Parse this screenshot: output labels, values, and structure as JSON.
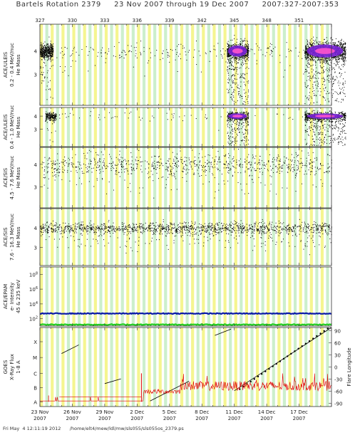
{
  "header": {
    "title": "Bartels Rotation 2379     23 Nov 2007 through 19 Dec 2007     2007:327-2007:353"
  },
  "footer": {
    "text": "Fri May  4 12:11:19 2012      /home/elt4/mew/ldl/mw/sls055/sls055os_2379.ps"
  },
  "chart_data": [
    {
      "type": "scatter",
      "ylabel": [
        "ACE/ULEIS",
        "0.2 - 0.4 MeV/nuc",
        "He Mass"
      ],
      "y_ticks": [
        "4",
        "3"
      ],
      "note": "point density shown as color contours (purple/pink cores at high density)",
      "clusters_day": [
        327.0,
        345.0,
        352.0
      ]
    },
    {
      "type": "scatter",
      "ylabel": [
        "ACE/ULEIS",
        "0.4 - 1.0 MeV/nuc",
        "He Mass"
      ],
      "y_ticks": [
        "4",
        "3"
      ],
      "clusters_day": [
        327.0,
        345.0,
        352.0
      ]
    },
    {
      "type": "scatter",
      "ylabel": [
        "ACE/SIS",
        "4.5 - 7.6 MeV/nuc",
        "He Mass"
      ],
      "y_ticks": [
        "4",
        "3"
      ]
    },
    {
      "type": "scatter",
      "ylabel": [
        "ACE/SIS",
        "7.6 - 16.3 MeV/nuc",
        "He Mass"
      ],
      "y_ticks": [
        "4",
        "3"
      ]
    },
    {
      "type": "line",
      "ylabel": [
        "ACE/EPAM",
        "e- Intensity",
        "45 & 235 keV"
      ],
      "y_ticks": [
        "10^8",
        "10^6",
        "10^4",
        "10^2"
      ],
      "y_log_range": [
        1,
        9
      ],
      "series": [
        {
          "values": [
            2.7
          ],
          "color": "#0a1aa8"
        },
        {
          "values": [
            1.2
          ],
          "color": "#22cc22"
        }
      ]
    },
    {
      "type": "line",
      "ylabel": [
        "GOES",
        "X-Ray Flux",
        "1-8 A"
      ],
      "y_ticks": [
        "X",
        "M",
        "C",
        "B",
        "A"
      ],
      "y2label": "Flare Longitude",
      "y2_ticks": [
        "90",
        "60",
        "30",
        "0",
        "-30",
        "-60",
        "-90"
      ],
      "series": [
        {
          "values": [
            0.58,
            0.74,
            0.84,
            0.5
          ],
          "color": "#e00000"
        },
        {
          "values": [
            -90,
            90
          ],
          "color": "#000000"
        }
      ]
    }
  ],
  "x_axis": {
    "day_range": [
      327,
      354
    ],
    "top_ticks": [
      "327",
      "330",
      "333",
      "336",
      "339",
      "342",
      "345",
      "348",
      "351"
    ],
    "top_tick_days": [
      327,
      330,
      333,
      336,
      339,
      342,
      345,
      348,
      351
    ],
    "bottom_labels": [
      {
        "day": "23 Nov",
        "year": "2007"
      },
      {
        "day": "26 Nov",
        "year": "2007"
      },
      {
        "day": "29 Nov",
        "year": "2007"
      },
      {
        "day": "2 Dec",
        "year": "2007"
      },
      {
        "day": "5 Dec",
        "year": "2007"
      },
      {
        "day": "8 Dec",
        "year": "2007"
      },
      {
        "day": "11 Dec",
        "year": "2007"
      },
      {
        "day": "14 Dec",
        "year": "2007"
      },
      {
        "day": "17 Dec",
        "year": "2007"
      }
    ],
    "bottom_label_days": [
      327,
      330,
      333,
      336,
      339,
      342,
      345,
      348,
      351
    ]
  },
  "colors": {
    "grid_yellow": "#f3f37c",
    "grid_green": "#c3ecc3",
    "points": "#000000",
    "density_high": "#7a22d8",
    "density_peak": "#ff55cc",
    "epam_high": "#0a1aa8",
    "epam_low": "#22cc22",
    "xray": "#e00000"
  }
}
